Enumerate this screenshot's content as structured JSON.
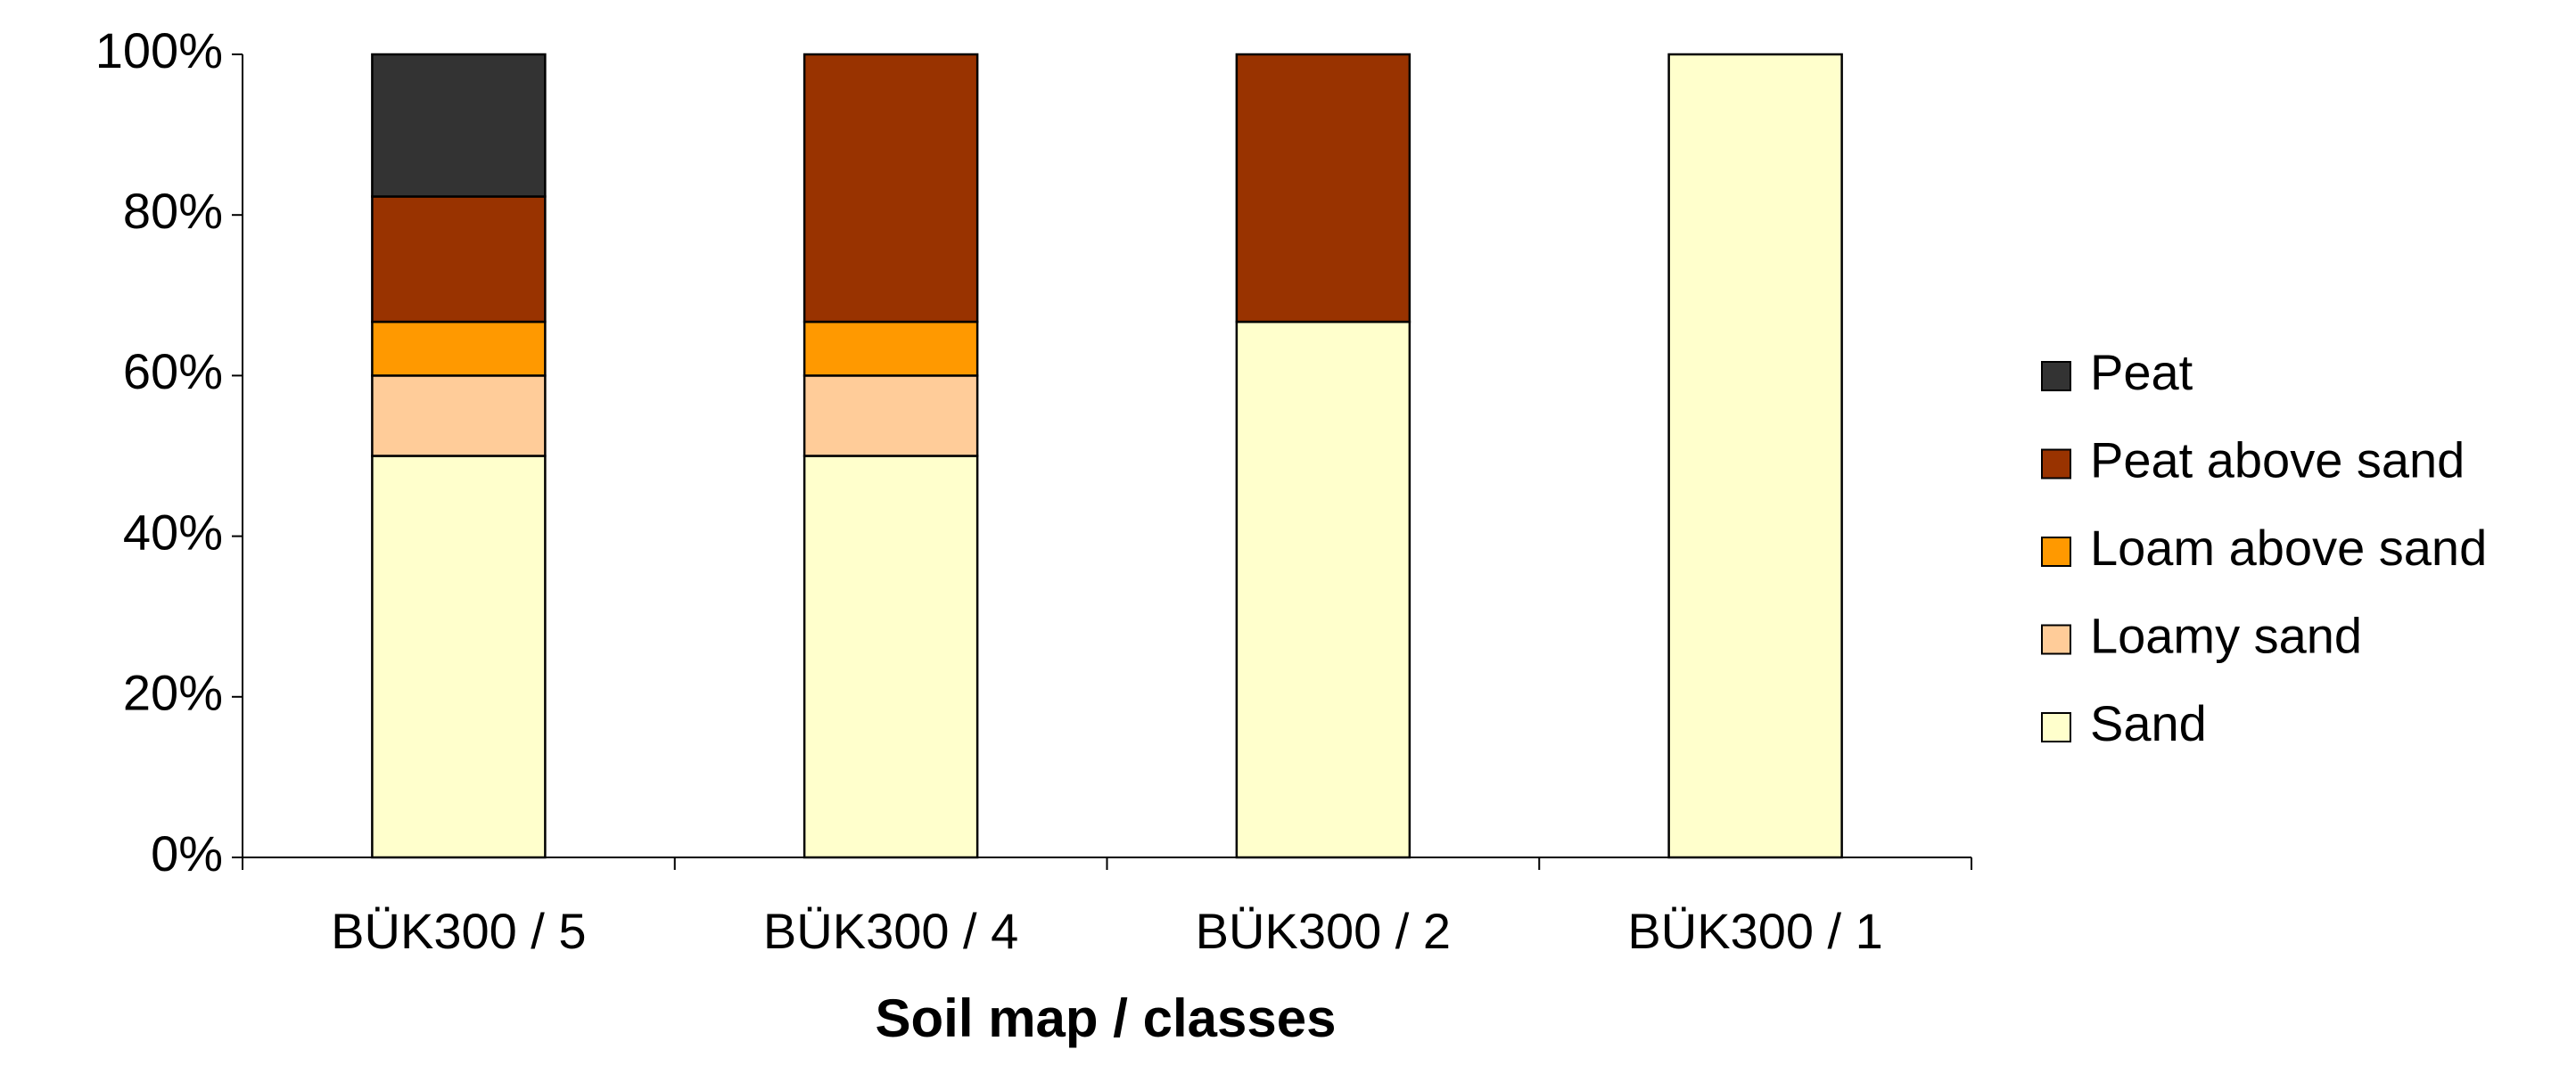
{
  "chart_data": {
    "type": "stacked_bar",
    "x_label": "Soil map / classes",
    "categories": [
      "BÜK300 / 5",
      "BÜK300 / 4",
      "BÜK300 / 2",
      "BÜK300 / 1"
    ],
    "series": [
      {
        "name": "Sand",
        "color": "#ffffcc",
        "values": [
          50,
          50,
          66.7,
          100
        ]
      },
      {
        "name": "Loamy sand",
        "color": "#ffcc99",
        "values": [
          10,
          10,
          0,
          0
        ]
      },
      {
        "name": "Loam above sand",
        "color": "#ff9900",
        "values": [
          6.7,
          6.7,
          0,
          0
        ]
      },
      {
        "name": "Peat above sand",
        "color": "#993300",
        "values": [
          15.6,
          33.3,
          33.3,
          0
        ]
      },
      {
        "name": "Peat",
        "color": "#333333",
        "values": [
          17.7,
          0,
          0,
          0
        ]
      }
    ],
    "ylim": [
      0,
      100
    ],
    "yticks": [
      {
        "value": 0,
        "label": "0%"
      },
      {
        "value": 20,
        "label": "20%"
      },
      {
        "value": 40,
        "label": "40%"
      },
      {
        "value": 60,
        "label": "60%"
      },
      {
        "value": 80,
        "label": "80%"
      },
      {
        "value": 100,
        "label": "100%"
      }
    ],
    "legend": "right"
  }
}
